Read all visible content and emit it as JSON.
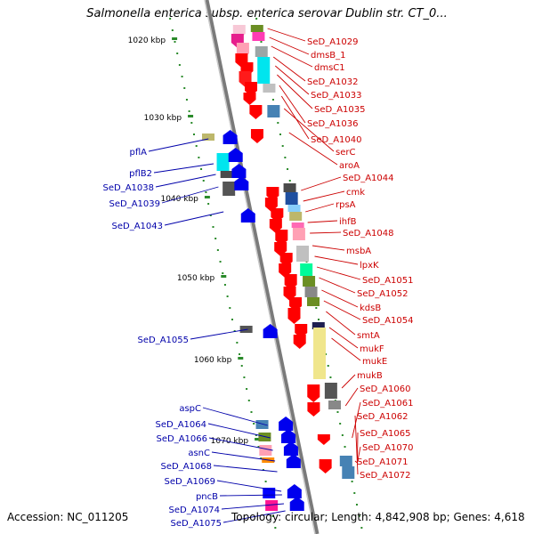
{
  "title": "Salmonella enterica subsp. enterica serovar Dublin str. CT_0...",
  "footer": {
    "accession": "Accession: NC_011205",
    "summary": "Topology: circular; Length: 4,842,908 bp; Genes: 4,618"
  },
  "colors": {
    "forward_label": "#cc0000",
    "reverse_label": "#0000aa",
    "axis": "#8a8a8a",
    "tick": "#2a8a2a"
  },
  "scale_labels": [
    {
      "label": "1020 kbp",
      "kbp": 1020
    },
    {
      "label": "1030 kbp",
      "kbp": 1030
    },
    {
      "label": "1040 kbp",
      "kbp": 1040
    },
    {
      "label": "1050 kbp",
      "kbp": 1050
    },
    {
      "label": "1060 kbp",
      "kbp": 1060
    },
    {
      "label": "1070 kbp",
      "kbp": 1070
    }
  ],
  "forward_genes": [
    "SeD_A1029",
    "dmsB_1",
    "dmsC1",
    "SeD_A1032",
    "SeD_A1033",
    "SeD_A1035",
    "SeD_A1036",
    "SeD_A1040",
    "serC",
    "aroA",
    "SeD_A1044",
    "cmk",
    "rpsA",
    "ihfB",
    "SeD_A1048",
    "msbA",
    "lpxK",
    "SeD_A1051",
    "SeD_A1052",
    "kdsB",
    "SeD_A1054",
    "smtA",
    "mukF",
    "mukE",
    "mukB",
    "SeD_A1060",
    "SeD_A1061",
    "SeD_A1062",
    "SeD_A1065",
    "SeD_A1070",
    "SeD_A1071",
    "SeD_A1072"
  ],
  "reverse_genes": [
    "pflA",
    "pflB2",
    "SeD_A1038",
    "SeD_A1039",
    "SeD_A1043",
    "SeD_A1055",
    "aspC",
    "SeD_A1064",
    "SeD_A1066",
    "asnC",
    "SeD_A1068",
    "SeD_A1069",
    "pncB",
    "SeD_A1074",
    "SeD_A1075"
  ]
}
